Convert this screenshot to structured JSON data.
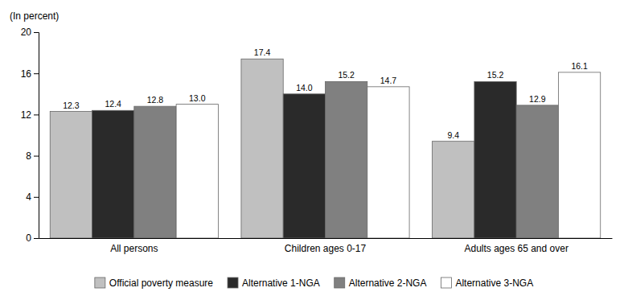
{
  "chart_data": {
    "type": "bar",
    "ylabel": "(In percent)",
    "categories": [
      "All persons",
      "Children ages 0-17",
      "Adults ages 65 and over"
    ],
    "series": [
      {
        "name": "Official poverty measure",
        "color": "#c0c0c0",
        "values": [
          12.3,
          17.4,
          9.4
        ],
        "value_labels": [
          "12.3",
          "17.4",
          "9.4"
        ]
      },
      {
        "name": "Alternative 1-NGA",
        "color": "#2a2a2a",
        "values": [
          12.4,
          14.0,
          15.2
        ],
        "value_labels": [
          "12.4",
          "14.0",
          "15.2"
        ]
      },
      {
        "name": "Alternative 2-NGA",
        "color": "#808080",
        "values": [
          12.8,
          15.2,
          12.9
        ],
        "value_labels": [
          "12.8",
          "15.2",
          "12.9"
        ]
      },
      {
        "name": "Alternative 3-NGA",
        "color": "#ffffff",
        "values": [
          13.0,
          14.7,
          16.1
        ],
        "value_labels": [
          "13.0",
          "14.7",
          "16.1"
        ]
      }
    ],
    "ylim": [
      0,
      20
    ],
    "yticks": [
      0,
      4,
      8,
      12,
      16,
      20
    ],
    "grid": false,
    "legend": "bottom",
    "data_labels": true
  }
}
